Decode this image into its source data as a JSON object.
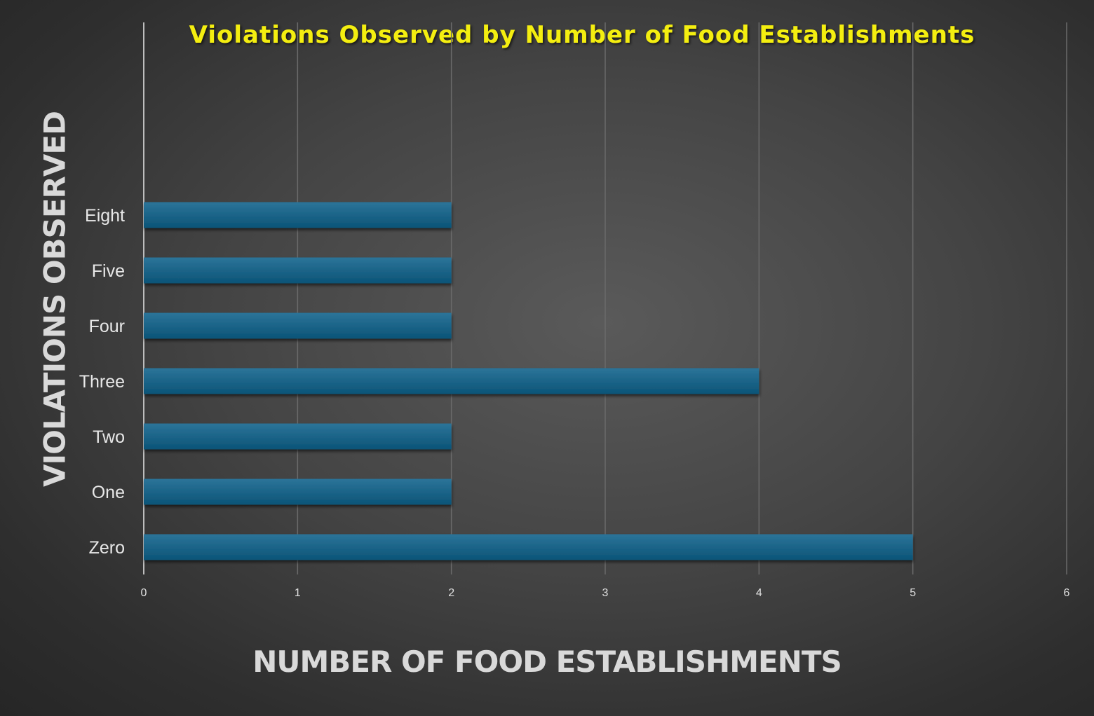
{
  "chart_data": {
    "type": "bar",
    "orientation": "horizontal",
    "title": "Violations Observed by Number of Food Establishments",
    "xlabel": "NUMBER OF FOOD ESTABLISHMENTS",
    "ylabel": "VIOLATIONS OBSERVED",
    "categories": [
      "Zero",
      "One",
      "Two",
      "Three",
      "Four",
      "Five",
      "Eight"
    ],
    "values": [
      5,
      2,
      2,
      4,
      2,
      2,
      2
    ],
    "xlim": [
      0,
      6
    ],
    "xticks": [
      "0",
      "1",
      "2",
      "3",
      "4",
      "5",
      "6"
    ],
    "grid": true,
    "legend": "none",
    "colors": {
      "bar_top": "#2c7499",
      "bar_bottom": "#0b5477",
      "title": "#f4ee10",
      "axis_title": "#d9d9d9",
      "gridline": "#6a6a6a"
    }
  }
}
